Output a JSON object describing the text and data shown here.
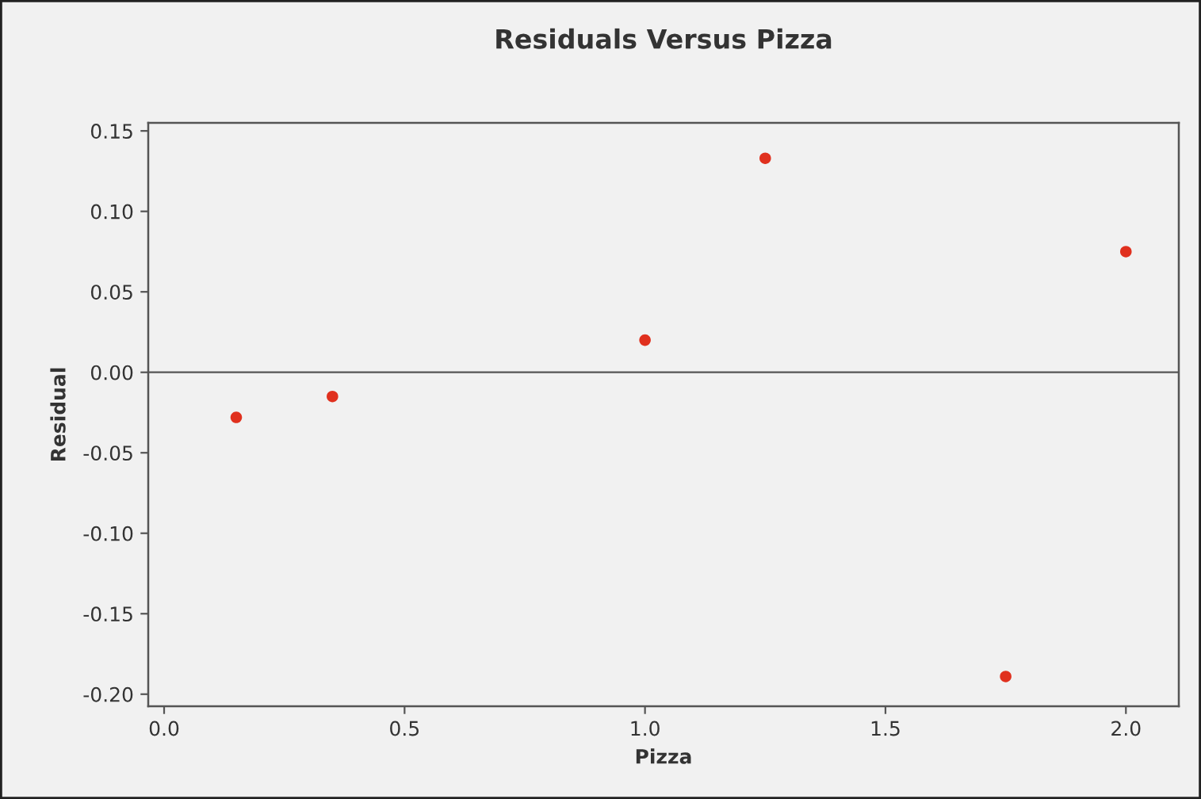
{
  "chart_data": {
    "type": "scatter",
    "title": "Residuals Versus Pizza",
    "xlabel": "Pizza",
    "ylabel": "Residual",
    "x": [
      0.15,
      0.35,
      1.0,
      1.25,
      1.75,
      2.0
    ],
    "series": [
      {
        "color": "#e0301e",
        "values": [
          -0.028,
          -0.015,
          0.02,
          0.133,
          -0.189,
          0.075
        ]
      }
    ],
    "marker": "circle",
    "grid": false,
    "xlim": [
      -0.033,
      2.11
    ],
    "xticks": [
      {
        "value": 0,
        "label": "0.0"
      },
      0.5,
      {
        "value": 1,
        "label": "1.0"
      },
      1.5,
      {
        "value": 2,
        "label": "2.0"
      }
    ],
    "ylim": [
      -0.2075,
      0.155
    ],
    "yticks": [
      {
        "value": -0.2,
        "label": "-0.20"
      },
      -0.15,
      {
        "value": -0.1,
        "label": "-0.10"
      },
      -0.05,
      {
        "value": 0,
        "label": "0.00"
      },
      0.05,
      {
        "value": 0.1,
        "label": "0.10"
      },
      0.15
    ],
    "ref_lines": [
      {
        "axis": "y",
        "value": 0,
        "color": "#555555",
        "line_style": "solid"
      }
    ]
  }
}
